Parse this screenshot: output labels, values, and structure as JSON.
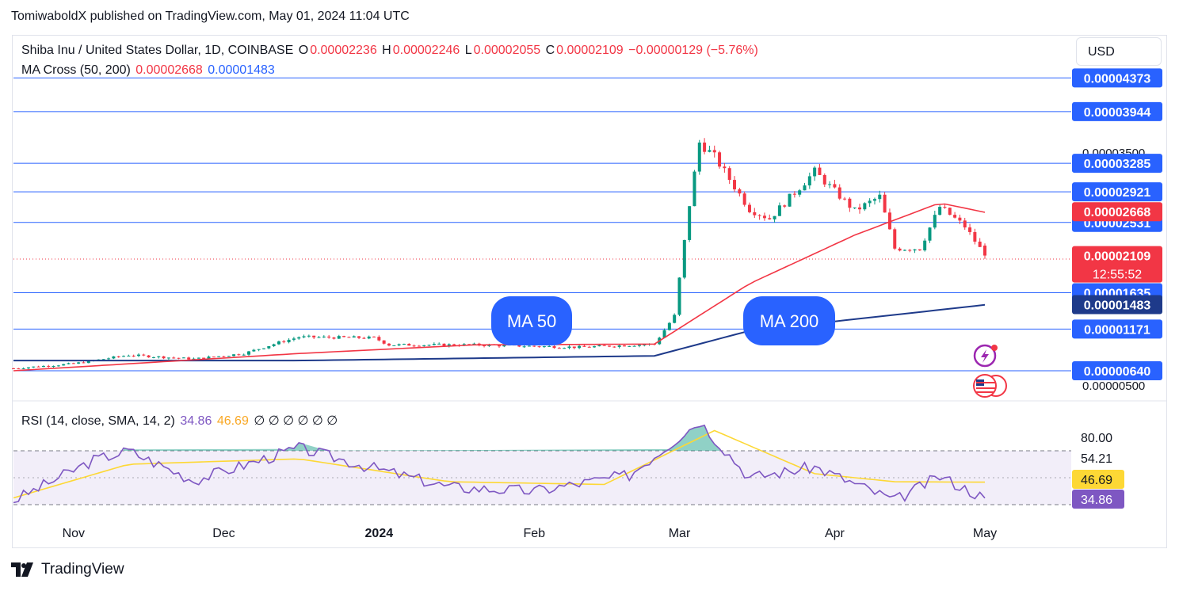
{
  "publish_line": "TomiwaboldX published on TradingView.com, May 01, 2024 11:04 UTC",
  "legend": {
    "symbol": "Shiba Inu / United States Dollar, 1D, COINBASE",
    "o_label": "O",
    "o_value": "0.00002236",
    "h_label": "H",
    "h_value": "0.00002246",
    "l_label": "L",
    "l_value": "0.00002055",
    "c_label": "C",
    "c_value": "0.00002109",
    "change": "−0.00000129 (−5.76%)",
    "ma_label": "MA Cross (50, 200)",
    "ma50_value": "0.00002668",
    "ma200_value": "0.00001483",
    "rsi_label": "RSI (14, close, SMA, 14, 2)",
    "rsi_value": "34.86",
    "rsi_sma_value": "46.69",
    "rsi_empty": "∅ ∅ ∅ ∅ ∅ ∅"
  },
  "currency_button": "USD",
  "annotations": {
    "ma50": "MA 50",
    "ma200": "MA 200"
  },
  "countdown": "12:55:52",
  "footer_brand": "TradingView",
  "colors": {
    "up": "#089981",
    "down": "#f23645",
    "ma50": "#f23645",
    "ma200": "#1e3a8a",
    "hline": "#2962ff",
    "rsi": "#7e57c2",
    "rsi_sma": "#fdd835",
    "label_bg": "#2962ff"
  },
  "chart_data": [
    {
      "type": "candlestick",
      "title": "Shiba Inu / United States Dollar, 1D, COINBASE",
      "x_ticks": [
        "Nov",
        "Dec",
        "2024",
        "Feb",
        "Mar",
        "Apr",
        "May"
      ],
      "y_ticks_visible": [
        "0.00003500",
        "0.00000500"
      ],
      "horizontal_levels": [
        "0.00004373",
        "0.00003944",
        "0.00003285",
        "0.00002921",
        "0.00002531",
        "0.00001635",
        "0.00001171",
        "0.00000640"
      ],
      "price_labels": [
        {
          "value": "0.00002668",
          "kind": "ma50"
        },
        {
          "value": "0.00002109",
          "kind": "last"
        },
        {
          "value": "0.00001483",
          "kind": "ma200"
        }
      ],
      "last_price": "0.00002109",
      "close_series": [
        {
          "date": "2023-10-20",
          "c": 6.7e-06
        },
        {
          "date": "2023-11-01",
          "c": 7.3e-06
        },
        {
          "date": "2023-11-12",
          "c": 8.4e-06
        },
        {
          "date": "2023-11-25",
          "c": 7.9e-06
        },
        {
          "date": "2023-12-05",
          "c": 8.6e-06
        },
        {
          "date": "2023-12-12",
          "c": 1e-05
        },
        {
          "date": "2023-12-16",
          "c": 1.07e-05
        },
        {
          "date": "2023-12-31",
          "c": 1.06e-05
        },
        {
          "date": "2024-01-03",
          "c": 9.7e-06
        },
        {
          "date": "2024-01-20",
          "c": 9.7e-06
        },
        {
          "date": "2024-02-10",
          "c": 9.4e-06
        },
        {
          "date": "2024-02-25",
          "c": 9.8e-06
        },
        {
          "date": "2024-02-29",
          "c": 1.34e-05
        },
        {
          "date": "2024-03-03",
          "c": 2.76e-05
        },
        {
          "date": "2024-03-05",
          "c": 3.55e-05
        },
        {
          "date": "2024-03-08",
          "c": 3.37e-05
        },
        {
          "date": "2024-03-15",
          "c": 2.7e-05
        },
        {
          "date": "2024-03-19",
          "c": 2.58e-05
        },
        {
          "date": "2024-03-28",
          "c": 3.18e-05
        },
        {
          "date": "2024-04-05",
          "c": 2.68e-05
        },
        {
          "date": "2024-04-10",
          "c": 2.86e-05
        },
        {
          "date": "2024-04-13",
          "c": 2.2e-05
        },
        {
          "date": "2024-04-18",
          "c": 2.2e-05
        },
        {
          "date": "2024-04-22",
          "c": 2.73e-05
        },
        {
          "date": "2024-04-27",
          "c": 2.48e-05
        },
        {
          "date": "2024-05-01",
          "c": 2.109e-05
        }
      ],
      "ma50": [
        {
          "date": "2023-10-20",
          "v": 6.4e-06
        },
        {
          "date": "2023-12-16",
          "v": 8.6e-06
        },
        {
          "date": "2024-01-20",
          "v": 9.7e-06
        },
        {
          "date": "2024-02-25",
          "v": 9.8e-06
        },
        {
          "date": "2024-03-15",
          "v": 1.75e-05
        },
        {
          "date": "2024-04-05",
          "v": 2.37e-05
        },
        {
          "date": "2024-04-22",
          "v": 2.78e-05
        },
        {
          "date": "2024-05-01",
          "v": 2.66e-05
        }
      ],
      "ma200": [
        {
          "date": "2023-10-20",
          "v": 7.7e-06
        },
        {
          "date": "2023-12-16",
          "v": 7.7e-06
        },
        {
          "date": "2024-02-25",
          "v": 8.3e-06
        },
        {
          "date": "2024-03-15",
          "v": 1.15e-05
        },
        {
          "date": "2024-05-01",
          "v": 1.48e-05
        }
      ]
    },
    {
      "type": "line",
      "title": "RSI (14, close, SMA, 14, 2)",
      "y_ticks": [
        "80.00",
        "54.21",
        "46.69",
        "34.86"
      ],
      "bands": [
        70,
        30
      ],
      "series": [
        {
          "name": "RSI",
          "values": [
            {
              "date": "2023-10-20",
              "v": 33
            },
            {
              "date": "2023-11-05",
              "v": 63
            },
            {
              "date": "2023-11-12",
              "v": 70
            },
            {
              "date": "2023-11-25",
              "v": 48
            },
            {
              "date": "2023-12-10",
              "v": 65
            },
            {
              "date": "2023-12-16",
              "v": 72
            },
            {
              "date": "2023-12-31",
              "v": 57
            },
            {
              "date": "2024-01-15",
              "v": 43
            },
            {
              "date": "2024-02-01",
              "v": 40
            },
            {
              "date": "2024-02-20",
              "v": 52
            },
            {
              "date": "2024-03-05",
              "v": 92
            },
            {
              "date": "2024-03-15",
              "v": 50
            },
            {
              "date": "2024-03-28",
              "v": 58
            },
            {
              "date": "2024-04-13",
              "v": 33
            },
            {
              "date": "2024-04-22",
              "v": 51
            },
            {
              "date": "2024-05-01",
              "v": 34.86
            }
          ]
        },
        {
          "name": "RSI-based MA",
          "values": [
            {
              "date": "2023-10-20",
              "v": 35
            },
            {
              "date": "2023-11-12",
              "v": 60
            },
            {
              "date": "2023-12-16",
              "v": 64
            },
            {
              "date": "2024-01-15",
              "v": 47
            },
            {
              "date": "2024-02-15",
              "v": 45
            },
            {
              "date": "2024-03-08",
              "v": 85
            },
            {
              "date": "2024-03-28",
              "v": 53
            },
            {
              "date": "2024-04-13",
              "v": 47
            },
            {
              "date": "2024-05-01",
              "v": 46.69
            }
          ]
        }
      ]
    }
  ]
}
